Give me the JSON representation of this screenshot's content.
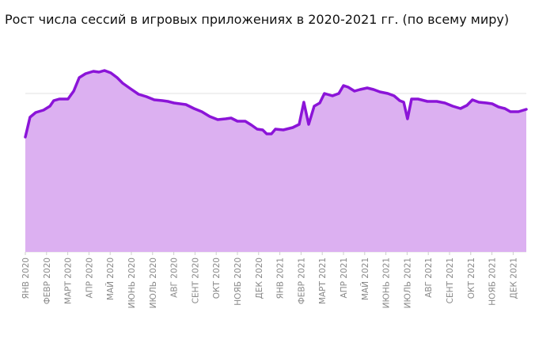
{
  "chart_data": {
    "type": "area",
    "title": "Рост числа сессий в игровых приложениях в 2020-2021 гг. (по всему миру)",
    "x": [
      0,
      0.22,
      0.49,
      0.86,
      1.16,
      1.34,
      1.6,
      2.01,
      2.28,
      2.54,
      2.84,
      3.21,
      3.47,
      3.73,
      4.03,
      4.33,
      4.59,
      4.96,
      5.34,
      5.71,
      6.08,
      6.46,
      6.72,
      7.01,
      7.57,
      7.95,
      8.32,
      8.69,
      9.07,
      9.44,
      9.7,
      10.0,
      10.37,
      10.67,
      10.93,
      11.19,
      11.38,
      11.6,
      11.79,
      12.16,
      12.61,
      12.91,
      13.13,
      13.36,
      13.62,
      13.88,
      14.1,
      14.48,
      14.78,
      15.0,
      15.22,
      15.52,
      15.78,
      16.12,
      16.42,
      16.72,
      17.09,
      17.39,
      17.65,
      17.84,
      18.02,
      18.21,
      18.51,
      18.96,
      19.4,
      19.78,
      20.15,
      20.52,
      20.82,
      21.08,
      21.38,
      21.75,
      22.01,
      22.31,
      22.61,
      22.87,
      23.25,
      23.62
    ],
    "values": [
      2.9,
      3.4,
      3.52,
      3.58,
      3.68,
      3.82,
      3.86,
      3.86,
      4.06,
      4.4,
      4.5,
      4.56,
      4.54,
      4.58,
      4.52,
      4.4,
      4.26,
      4.12,
      3.98,
      3.92,
      3.84,
      3.82,
      3.8,
      3.76,
      3.72,
      3.62,
      3.54,
      3.42,
      3.34,
      3.36,
      3.38,
      3.3,
      3.3,
      3.2,
      3.1,
      3.08,
      2.98,
      2.98,
      3.1,
      3.08,
      3.14,
      3.22,
      3.78,
      3.22,
      3.68,
      3.76,
      4.0,
      3.94,
      4.0,
      4.2,
      4.16,
      4.06,
      4.1,
      4.14,
      4.1,
      4.04,
      4.0,
      3.94,
      3.82,
      3.78,
      3.36,
      3.86,
      3.86,
      3.8,
      3.8,
      3.76,
      3.68,
      3.62,
      3.7,
      3.84,
      3.78,
      3.76,
      3.74,
      3.66,
      3.62,
      3.54,
      3.54,
      3.6
    ],
    "color": "#8b14d8",
    "fill_color": "#dcb0f1",
    "xlim": [
      0,
      23.62
    ],
    "xticks": [
      {
        "value": 0,
        "label": "ЯНВ 2020"
      },
      {
        "value": 1,
        "label": "ФЕВР 2020"
      },
      {
        "value": 2,
        "label": "МАРТ 2020"
      },
      {
        "value": 3,
        "label": "АПР 2020"
      },
      {
        "value": 4,
        "label": "МАЙ 2020"
      },
      {
        "value": 5,
        "label": "ИЮНЬ 2020"
      },
      {
        "value": 6,
        "label": "ИЮЛЬ 2020"
      },
      {
        "value": 7,
        "label": "АВГ 2020"
      },
      {
        "value": 8,
        "label": "СЕНТ 2020"
      },
      {
        "value": 9,
        "label": "ОКТ 2020"
      },
      {
        "value": 10,
        "label": "НОЯБ 2020"
      },
      {
        "value": 11,
        "label": "ДЕК 2020"
      },
      {
        "value": 12,
        "label": "ЯНВ 2021"
      },
      {
        "value": 13,
        "label": "ФЕВР 2021"
      },
      {
        "value": 14,
        "label": "МАРТ 2021"
      },
      {
        "value": 15,
        "label": "АПР 2021"
      },
      {
        "value": 16,
        "label": "МАЙ 2021"
      },
      {
        "value": 17,
        "label": "ИЮНЬ 2021"
      },
      {
        "value": 18,
        "label": "ИЮЛЬ 2021"
      },
      {
        "value": 19,
        "label": "АВГ 2021"
      },
      {
        "value": 20,
        "label": "СЕНТ 2021"
      },
      {
        "value": 21,
        "label": "ОКТ 2021"
      },
      {
        "value": 22,
        "label": "НОЯБ 2021"
      },
      {
        "value": 23,
        "label": "ДЕК 2021"
      }
    ],
    "ylim": [
      0,
      5
    ],
    "yticks": [
      0,
      1,
      2,
      3,
      4
    ],
    "grid": true
  }
}
